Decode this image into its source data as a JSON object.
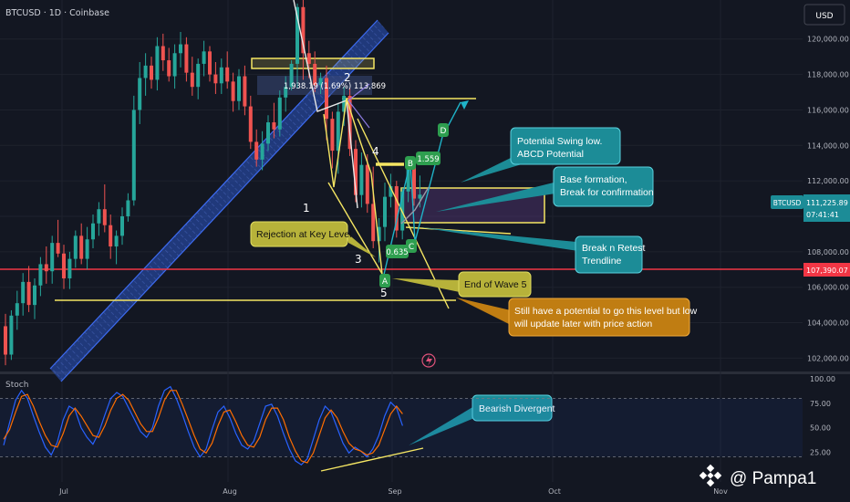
{
  "header": {
    "symbol_line": "BTCUSD · 1D · Coinbase",
    "currency": "USD"
  },
  "price_axis": {
    "ticks": [
      "120,000.00",
      "118,000.00",
      "116,000.00",
      "114,000.00",
      "112,000.00",
      "110,000.00",
      "108,000.00",
      "106,000.00",
      "104,000.00",
      "102,000.00"
    ],
    "current_tag": "BTCUSD",
    "current_price": "111,225.89",
    "countdown": "07:41:41",
    "support_price": "107,390.07"
  },
  "time_axis": {
    "labels": [
      "Jul",
      "Aug",
      "Sep",
      "Oct",
      "Nov"
    ]
  },
  "stoch": {
    "label": "Stoch",
    "ticks": [
      "100.00",
      "75.00",
      "50.00",
      "25.00"
    ]
  },
  "annotations": {
    "measure_label": "1,938.19 (1.69%) 113,869",
    "wave_labels": [
      "2",
      "1",
      "4",
      "3",
      "5"
    ],
    "pattern_points": [
      "A",
      "B",
      "C",
      "D"
    ],
    "fib_low": "0.635",
    "fib_high": "1.559",
    "callouts": {
      "rejection": "Rejection at Key Level",
      "swing_low": [
        "Potential Swing low.",
        "ABCD Potential"
      ],
      "base": [
        "Base formation,",
        "Break for confirmation"
      ],
      "break_retest": [
        "Break n Retest",
        "Trendline"
      ],
      "end_wave5": "End of Wave 5",
      "potential": [
        "Still have a potential to go this level but low",
        "will update later with price action"
      ],
      "bearish_div": "Bearish Divergent"
    }
  },
  "watermark": "@ Pampa1",
  "colors": {
    "background": "#131722",
    "up": "#26a69a",
    "down": "#ef5350",
    "yellow": "#f5e663",
    "teal_box": "#1c8c97",
    "olive_box": "#b7b23a",
    "orange_box": "#c07d12",
    "support": "#f23645",
    "stoch_k": "#2962ff",
    "stoch_d": "#ff6d00"
  },
  "chart_data": {
    "type": "candlestick",
    "title": "BTCUSD · 1D · Coinbase",
    "y_axis": {
      "ylim": [
        101300,
        122200
      ],
      "scale": "linear"
    },
    "x_axis": {
      "labels": [
        "Jul",
        "Aug",
        "Sep",
        "Oct",
        "Nov"
      ]
    },
    "last_price": 111225.89,
    "support_level": 107390.07,
    "series": [
      {
        "ohlc": [
          [
            103800,
            104500,
            101600,
            102200
          ],
          [
            102200,
            104700,
            101900,
            104400
          ],
          [
            104400,
            105800,
            103600,
            105100
          ],
          [
            105100,
            106800,
            104400,
            106300
          ],
          [
            106300,
            107200,
            104600,
            105000
          ],
          [
            105000,
            106500,
            104200,
            106100
          ],
          [
            106100,
            107700,
            105500,
            107300
          ],
          [
            107300,
            108300,
            106200,
            106900
          ],
          [
            106900,
            108900,
            106200,
            108500
          ],
          [
            108500,
            109800,
            107700,
            107900
          ],
          [
            107900,
            108400,
            105900,
            106500
          ],
          [
            106500,
            108000,
            105900,
            107600
          ],
          [
            107600,
            109200,
            107100,
            108900
          ],
          [
            108900,
            109600,
            107300,
            107600
          ],
          [
            107600,
            109400,
            107000,
            108700
          ],
          [
            108700,
            110100,
            108200,
            109600
          ],
          [
            109600,
            110800,
            108900,
            110400
          ],
          [
            110400,
            111800,
            109100,
            109500
          ],
          [
            109500,
            110100,
            107600,
            108300
          ],
          [
            108300,
            109200,
            107300,
            108900
          ],
          [
            108900,
            110500,
            108400,
            110000
          ],
          [
            110000,
            111300,
            109700,
            110900
          ],
          [
            110900,
            116800,
            110600,
            116000
          ],
          [
            116000,
            118700,
            115200,
            117800
          ],
          [
            117800,
            119200,
            116800,
            118500
          ],
          [
            118500,
            119000,
            117200,
            117700
          ],
          [
            117700,
            120100,
            117100,
            119600
          ],
          [
            119600,
            120300,
            118200,
            118800
          ],
          [
            118800,
            119500,
            117600,
            117900
          ],
          [
            117900,
            119700,
            117200,
            119200
          ],
          [
            119200,
            120400,
            118400,
            119700
          ],
          [
            119700,
            120100,
            117600,
            118100
          ],
          [
            118100,
            119000,
            116800,
            117300
          ],
          [
            117300,
            118900,
            116600,
            118600
          ],
          [
            118600,
            119900,
            117900,
            119300
          ],
          [
            119300,
            119600,
            117600,
            118000
          ],
          [
            118000,
            118700,
            116900,
            117500
          ],
          [
            117500,
            118900,
            116900,
            118400
          ],
          [
            118400,
            119300,
            117200,
            117600
          ],
          [
            117600,
            118100,
            115900,
            116500
          ],
          [
            116500,
            118300,
            116000,
            117900
          ],
          [
            117900,
            118500,
            115700,
            116200
          ],
          [
            116200,
            116800,
            113800,
            114200
          ],
          [
            114200,
            114900,
            112800,
            113200
          ],
          [
            113200,
            114800,
            112600,
            114100
          ],
          [
            114100,
            115700,
            113700,
            115300
          ],
          [
            115300,
            116400,
            114400,
            114900
          ],
          [
            114900,
            117100,
            114500,
            116700
          ],
          [
            116700,
            117900,
            115900,
            117300
          ],
          [
            117300,
            118800,
            117100,
            118600
          ],
          [
            118600,
            122000,
            117200,
            121800
          ],
          [
            121800,
            123000,
            117700,
            119200
          ],
          [
            119200,
            119900,
            117800,
            118600
          ],
          [
            118600,
            119300,
            117000,
            117400
          ],
          [
            117400,
            118100,
            116900,
            117800
          ],
          [
            117800,
            118500,
            114300,
            115500
          ],
          [
            115500,
            115900,
            112700,
            113700
          ],
          [
            113700,
            116400,
            112400,
            115900
          ],
          [
            115900,
            117300,
            115100,
            116800
          ],
          [
            116800,
            117200,
            113400,
            113800
          ],
          [
            113800,
            114300,
            110800,
            111200
          ],
          [
            111200,
            113600,
            110500,
            112900
          ],
          [
            112900,
            113500,
            110200,
            110700
          ],
          [
            110700,
            112800,
            108200,
            108600
          ],
          [
            108600,
            109900,
            107400,
            109400
          ],
          [
            109400,
            111900,
            108600,
            111100
          ],
          [
            111100,
            112400,
            110500,
            111700
          ],
          [
            111700,
            112000,
            108800,
            109200
          ],
          [
            109200,
            111600,
            108700,
            111400
          ],
          [
            111400,
            113400,
            110800,
            112900
          ],
          [
            112900,
            113200,
            110600,
            111000
          ],
          [
            111000,
            112300,
            110500,
            111225
          ]
        ]
      }
    ],
    "stochastic": {
      "k": [
        32,
        55,
        78,
        88,
        80,
        62,
        45,
        30,
        22,
        35,
        58,
        72,
        68,
        50,
        40,
        33,
        45,
        63,
        80,
        86,
        82,
        70,
        58,
        46,
        40,
        50,
        72,
        88,
        92,
        80,
        64,
        46,
        30,
        20,
        28,
        48,
        66,
        72,
        60,
        44,
        32,
        28,
        36,
        54,
        72,
        74,
        62,
        44,
        28,
        16,
        12,
        18,
        38,
        58,
        72,
        66,
        50,
        34,
        24,
        30,
        26,
        20,
        28,
        42,
        62,
        76,
        70,
        52
      ],
      "d": [
        38,
        48,
        66,
        82,
        84,
        72,
        56,
        42,
        32,
        30,
        44,
        62,
        70,
        62,
        52,
        42,
        40,
        52,
        68,
        80,
        84,
        78,
        66,
        54,
        46,
        46,
        60,
        78,
        88,
        88,
        74,
        58,
        42,
        28,
        24,
        34,
        52,
        66,
        68,
        56,
        42,
        32,
        30,
        40,
        58,
        70,
        70,
        58,
        40,
        26,
        16,
        14,
        24,
        42,
        60,
        68,
        60,
        46,
        34,
        28,
        26,
        22,
        24,
        32,
        48,
        64,
        72,
        64
      ],
      "ylim": [
        0,
        100
      ]
    }
  }
}
